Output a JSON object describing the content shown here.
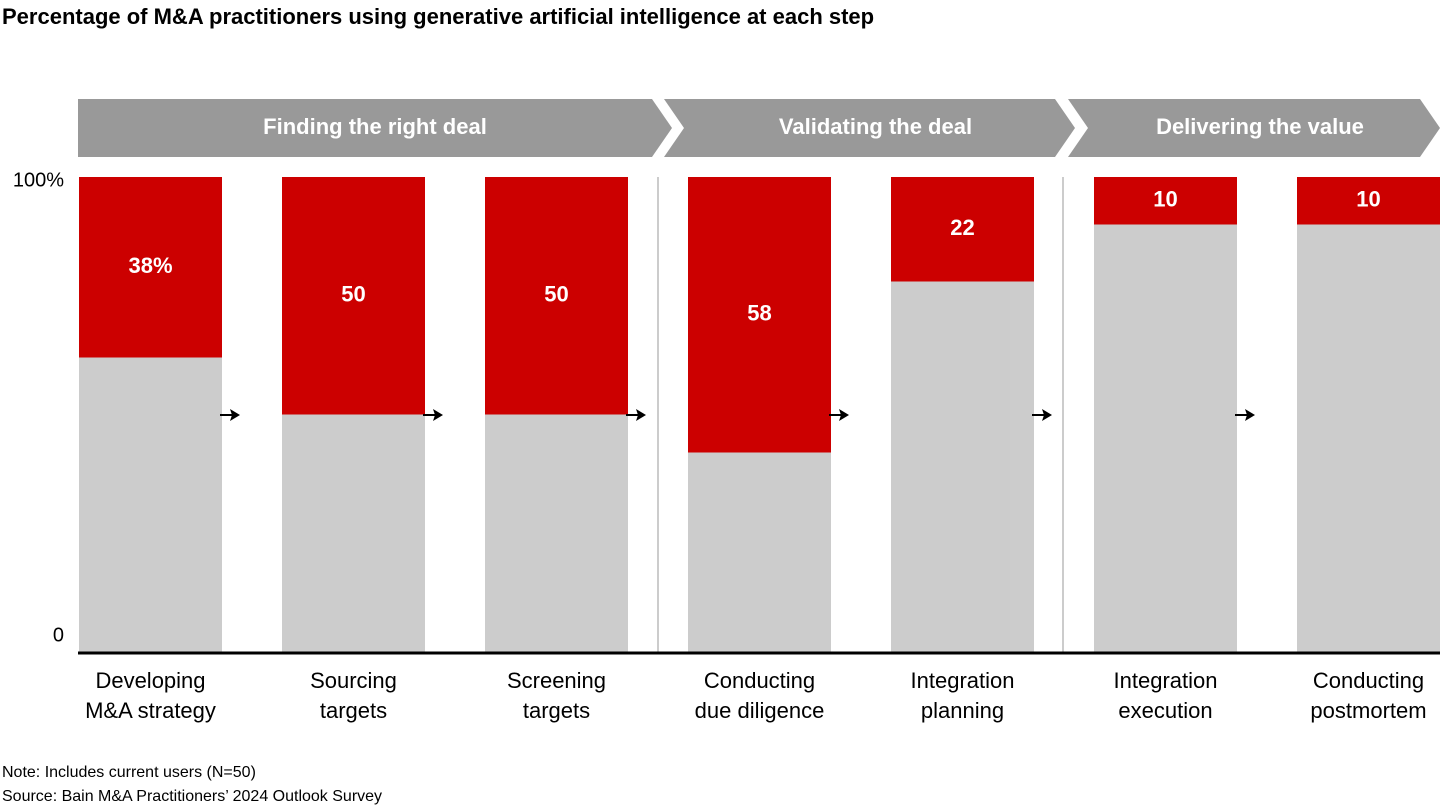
{
  "chart_data": {
    "type": "stacked_bar_100",
    "title": "Percentage of M&A practitioners using generative artificial intelligence at each step",
    "phases": [
      "Finding the right deal",
      "Validating the deal",
      "Delivering the value"
    ],
    "categories": [
      "Developing\nM&A strategy",
      "Sourcing\ntargets",
      "Screening\ntargets",
      "Conducting\ndue diligence",
      "Integration\nplanning",
      "Integration\nexecution",
      "Conducting\npostmortem"
    ],
    "series": [
      {
        "color": "#cc0000",
        "values": [
          38,
          50,
          50,
          58,
          22,
          10,
          10
        ],
        "value_labels": [
          "38%",
          "50",
          "50",
          "58",
          "22",
          "10",
          "10"
        ]
      },
      {
        "color": "#cccccc",
        "values": [
          62,
          50,
          50,
          42,
          78,
          90,
          90
        ]
      }
    ],
    "ylim": [
      0,
      100
    ],
    "yticks": [
      0,
      {
        "value": 100,
        "label": "100%"
      }
    ],
    "notes": [
      "Note: Includes current users (N=50)",
      "Source: Bain M&A Practitioners’ 2024 Outlook Survey"
    ]
  }
}
